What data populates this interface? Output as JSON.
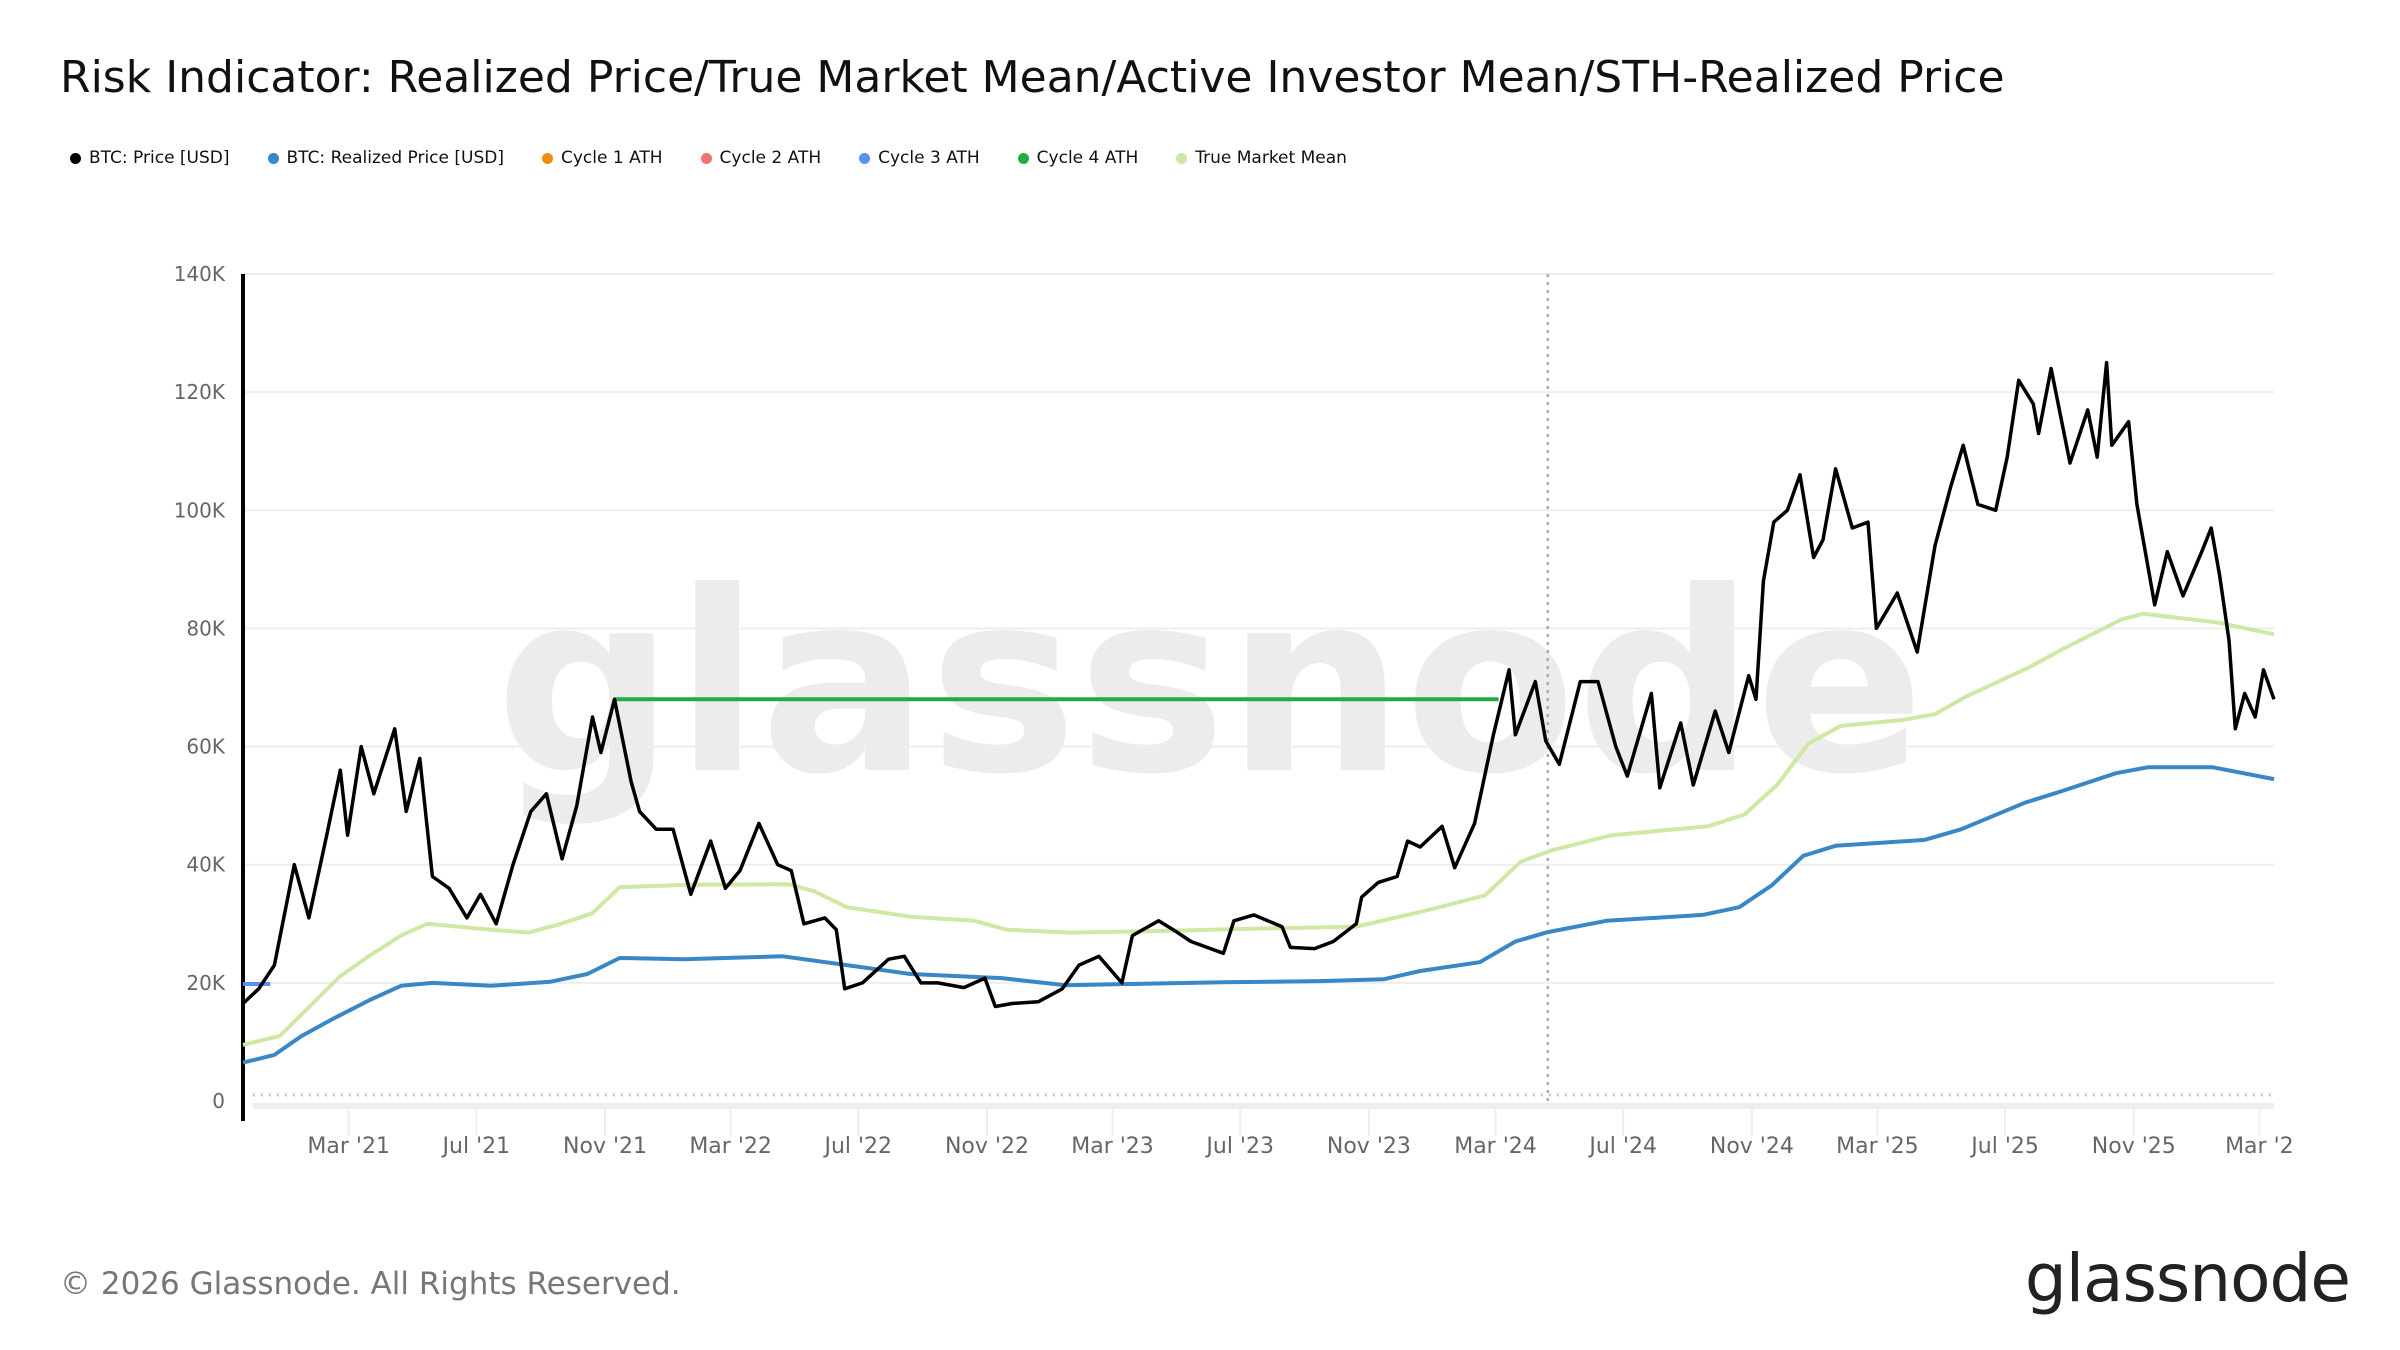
{
  "title": "Risk Indicator: Realized Price/True Market Mean/Active Investor Mean/STH-Realized Price",
  "legend": [
    {
      "label": "BTC: Price [USD]",
      "color": "#000000"
    },
    {
      "label": "BTC: Realized Price [USD]",
      "color": "#3a87c5"
    },
    {
      "label": "Cycle 1 ATH",
      "color": "#f28c0f"
    },
    {
      "label": "Cycle 2 ATH",
      "color": "#f07272"
    },
    {
      "label": "Cycle 3 ATH",
      "color": "#5b8ff0"
    },
    {
      "label": "Cycle 4 ATH",
      "color": "#22aa44"
    },
    {
      "label": "True Market Mean",
      "color": "#cfe8a4"
    }
  ],
  "footer": {
    "copyright": "© 2026 Glassnode. All Rights Reserved.",
    "logo": "glassnode",
    "watermark": "glassnode"
  },
  "chart_data": {
    "type": "line",
    "title": "Risk Indicator: Realized Price/True Market Mean/Active Investor Mean/STH-Realized Price",
    "xlabel": "",
    "ylabel": "",
    "ylim": [
      0,
      140000
    ],
    "xlim": [
      "2020-11-20",
      "2026-03-15"
    ],
    "y_ticks": [
      {
        "v": 0,
        "label": "0"
      },
      {
        "v": 20000,
        "label": "20K"
      },
      {
        "v": 40000,
        "label": "40K"
      },
      {
        "v": 60000,
        "label": "60K"
      },
      {
        "v": 80000,
        "label": "80K"
      },
      {
        "v": 100000,
        "label": "100K"
      },
      {
        "v": 120000,
        "label": "120K"
      },
      {
        "v": 140000,
        "label": "140K"
      }
    ],
    "x_ticks": [
      {
        "date": "2021-03-01",
        "label": "Mar '21"
      },
      {
        "date": "2021-07-01",
        "label": "Jul '21"
      },
      {
        "date": "2021-11-01",
        "label": "Nov '21"
      },
      {
        "date": "2022-03-01",
        "label": "Mar '22"
      },
      {
        "date": "2022-07-01",
        "label": "Jul '22"
      },
      {
        "date": "2022-11-01",
        "label": "Nov '22"
      },
      {
        "date": "2023-03-01",
        "label": "Mar '23"
      },
      {
        "date": "2023-07-01",
        "label": "Jul '23"
      },
      {
        "date": "2023-11-01",
        "label": "Nov '23"
      },
      {
        "date": "2024-03-01",
        "label": "Mar '24"
      },
      {
        "date": "2024-07-01",
        "label": "Jul '24"
      },
      {
        "date": "2024-11-01",
        "label": "Nov '24"
      },
      {
        "date": "2025-03-01",
        "label": "Mar '25"
      },
      {
        "date": "2025-07-01",
        "label": "Jul '25"
      },
      {
        "date": "2025-11-01",
        "label": "Nov '25"
      },
      {
        "date": "2026-03-01",
        "label": "Mar '2"
      }
    ],
    "grid": true,
    "legend_position": "top-left",
    "vertical_marker": "2024-04-20",
    "series": [
      {
        "name": "BTC: Price [USD]",
        "color": "#000000",
        "points": [
          [
            "2020-11-20",
            16500
          ],
          [
            "2020-12-05",
            19000
          ],
          [
            "2020-12-20",
            23000
          ],
          [
            "2021-01-08",
            40000
          ],
          [
            "2021-01-22",
            31000
          ],
          [
            "2021-02-08",
            45000
          ],
          [
            "2021-02-21",
            56000
          ],
          [
            "2021-02-28",
            45000
          ],
          [
            "2021-03-13",
            60000
          ],
          [
            "2021-03-25",
            52000
          ],
          [
            "2021-04-14",
            63000
          ],
          [
            "2021-04-25",
            49000
          ],
          [
            "2021-05-08",
            58000
          ],
          [
            "2021-05-20",
            38000
          ],
          [
            "2021-06-05",
            36000
          ],
          [
            "2021-06-22",
            31000
          ],
          [
            "2021-07-05",
            35000
          ],
          [
            "2021-07-20",
            30000
          ],
          [
            "2021-08-05",
            40000
          ],
          [
            "2021-08-22",
            49000
          ],
          [
            "2021-09-06",
            52000
          ],
          [
            "2021-09-21",
            41000
          ],
          [
            "2021-10-05",
            50000
          ],
          [
            "2021-10-20",
            65000
          ],
          [
            "2021-10-28",
            59000
          ],
          [
            "2021-11-10",
            68000
          ],
          [
            "2021-11-26",
            54000
          ],
          [
            "2021-12-04",
            49000
          ],
          [
            "2021-12-20",
            46000
          ],
          [
            "2022-01-05",
            46000
          ],
          [
            "2022-01-22",
            35000
          ],
          [
            "2022-02-10",
            44000
          ],
          [
            "2022-02-24",
            36000
          ],
          [
            "2022-03-10",
            39000
          ],
          [
            "2022-03-28",
            47000
          ],
          [
            "2022-04-15",
            40000
          ],
          [
            "2022-04-28",
            39000
          ],
          [
            "2022-05-10",
            30000
          ],
          [
            "2022-05-30",
            31000
          ],
          [
            "2022-06-10",
            29000
          ],
          [
            "2022-06-18",
            19000
          ],
          [
            "2022-07-05",
            20000
          ],
          [
            "2022-07-30",
            24000
          ],
          [
            "2022-08-14",
            24500
          ],
          [
            "2022-08-30",
            20000
          ],
          [
            "2022-09-15",
            20000
          ],
          [
            "2022-10-10",
            19200
          ],
          [
            "2022-10-30",
            20800
          ],
          [
            "2022-11-09",
            16000
          ],
          [
            "2022-11-25",
            16500
          ],
          [
            "2022-12-20",
            16800
          ],
          [
            "2023-01-12",
            19000
          ],
          [
            "2023-01-28",
            23000
          ],
          [
            "2023-02-16",
            24500
          ],
          [
            "2023-03-10",
            20000
          ],
          [
            "2023-03-20",
            28000
          ],
          [
            "2023-04-14",
            30500
          ],
          [
            "2023-04-28",
            29000
          ],
          [
            "2023-05-15",
            27000
          ],
          [
            "2023-06-15",
            25000
          ],
          [
            "2023-06-25",
            30500
          ],
          [
            "2023-07-14",
            31500
          ],
          [
            "2023-08-10",
            29500
          ],
          [
            "2023-08-18",
            26000
          ],
          [
            "2023-09-10",
            25800
          ],
          [
            "2023-09-28",
            27000
          ],
          [
            "2023-10-20",
            30000
          ],
          [
            "2023-10-25",
            34500
          ],
          [
            "2023-11-10",
            37000
          ],
          [
            "2023-11-28",
            38000
          ],
          [
            "2023-12-08",
            44000
          ],
          [
            "2023-12-20",
            43000
          ],
          [
            "2024-01-10",
            46500
          ],
          [
            "2024-01-22",
            39500
          ],
          [
            "2024-02-10",
            47000
          ],
          [
            "2024-02-28",
            62000
          ],
          [
            "2024-03-14",
            73000
          ],
          [
            "2024-03-20",
            62000
          ],
          [
            "2024-04-08",
            71000
          ],
          [
            "2024-04-18",
            61000
          ],
          [
            "2024-05-01",
            57000
          ],
          [
            "2024-05-21",
            71000
          ],
          [
            "2024-06-07",
            71000
          ],
          [
            "2024-06-24",
            60000
          ],
          [
            "2024-07-05",
            55000
          ],
          [
            "2024-07-28",
            69000
          ],
          [
            "2024-08-05",
            53000
          ],
          [
            "2024-08-25",
            64000
          ],
          [
            "2024-09-06",
            53500
          ],
          [
            "2024-09-27",
            66000
          ],
          [
            "2024-10-10",
            59000
          ],
          [
            "2024-10-29",
            72000
          ],
          [
            "2024-11-05",
            68000
          ],
          [
            "2024-11-12",
            88000
          ],
          [
            "2024-11-22",
            98000
          ],
          [
            "2024-12-05",
            100000
          ],
          [
            "2024-12-17",
            106000
          ],
          [
            "2024-12-30",
            92000
          ],
          [
            "2025-01-08",
            95000
          ],
          [
            "2025-01-20",
            107000
          ],
          [
            "2025-02-05",
            97000
          ],
          [
            "2025-02-20",
            98000
          ],
          [
            "2025-02-28",
            80000
          ],
          [
            "2025-03-20",
            86000
          ],
          [
            "2025-04-08",
            76000
          ],
          [
            "2025-04-25",
            94000
          ],
          [
            "2025-05-10",
            104000
          ],
          [
            "2025-05-22",
            111000
          ],
          [
            "2025-06-05",
            101000
          ],
          [
            "2025-06-22",
            100000
          ],
          [
            "2025-07-03",
            109000
          ],
          [
            "2025-07-14",
            122000
          ],
          [
            "2025-07-28",
            118000
          ],
          [
            "2025-08-02",
            113000
          ],
          [
            "2025-08-14",
            124000
          ],
          [
            "2025-09-01",
            108000
          ],
          [
            "2025-09-18",
            117000
          ],
          [
            "2025-09-27",
            109000
          ],
          [
            "2025-10-06",
            125000
          ],
          [
            "2025-10-11",
            111000
          ],
          [
            "2025-10-27",
            115000
          ],
          [
            "2025-11-04",
            101000
          ],
          [
            "2025-11-21",
            84000
          ],
          [
            "2025-12-03",
            93000
          ],
          [
            "2025-12-18",
            85500
          ],
          [
            "2026-01-05",
            93000
          ],
          [
            "2026-01-14",
            97000
          ],
          [
            "2026-01-22",
            89000
          ],
          [
            "2026-01-31",
            78000
          ],
          [
            "2026-02-06",
            63000
          ],
          [
            "2026-02-15",
            69000
          ],
          [
            "2026-02-25",
            65000
          ],
          [
            "2026-03-05",
            73000
          ],
          [
            "2026-03-15",
            68000
          ]
        ]
      },
      {
        "name": "BTC: Realized Price [USD]",
        "color": "#3a87c5",
        "points": [
          [
            "2020-11-20",
            6500
          ],
          [
            "2020-12-20",
            7800
          ],
          [
            "2021-01-15",
            11000
          ],
          [
            "2021-02-15",
            14000
          ],
          [
            "2021-03-20",
            17000
          ],
          [
            "2021-04-20",
            19500
          ],
          [
            "2021-05-20",
            20000
          ],
          [
            "2021-07-15",
            19500
          ],
          [
            "2021-09-10",
            20200
          ],
          [
            "2021-10-15",
            21500
          ],
          [
            "2021-11-15",
            24200
          ],
          [
            "2022-01-15",
            24000
          ],
          [
            "2022-04-20",
            24500
          ],
          [
            "2022-06-20",
            23000
          ],
          [
            "2022-08-20",
            21500
          ],
          [
            "2022-11-15",
            20800
          ],
          [
            "2023-01-15",
            19600
          ],
          [
            "2023-03-15",
            19800
          ],
          [
            "2023-06-15",
            20100
          ],
          [
            "2023-09-15",
            20300
          ],
          [
            "2023-11-15",
            20600
          ],
          [
            "2023-12-20",
            22000
          ],
          [
            "2024-02-15",
            23500
          ],
          [
            "2024-03-20",
            27000
          ],
          [
            "2024-04-20",
            28600
          ],
          [
            "2024-06-15",
            30500
          ],
          [
            "2024-09-15",
            31500
          ],
          [
            "2024-10-20",
            32800
          ],
          [
            "2024-11-20",
            36500
          ],
          [
            "2024-12-20",
            41500
          ],
          [
            "2025-01-20",
            43200
          ],
          [
            "2025-04-15",
            44200
          ],
          [
            "2025-05-20",
            46000
          ],
          [
            "2025-07-20",
            50500
          ],
          [
            "2025-08-25",
            52500
          ],
          [
            "2025-10-15",
            55500
          ],
          [
            "2025-11-15",
            56500
          ],
          [
            "2026-01-15",
            56500
          ],
          [
            "2026-03-15",
            54500
          ]
        ]
      },
      {
        "name": "True Market Mean",
        "color": "#cfe8a4",
        "points": [
          [
            "2020-11-20",
            9500
          ],
          [
            "2020-12-25",
            11000
          ],
          [
            "2021-01-20",
            15500
          ],
          [
            "2021-02-20",
            21000
          ],
          [
            "2021-03-20",
            24500
          ],
          [
            "2021-04-20",
            28000
          ],
          [
            "2021-05-15",
            30000
          ],
          [
            "2021-07-15",
            29000
          ],
          [
            "2021-08-20",
            28500
          ],
          [
            "2021-09-20",
            30000
          ],
          [
            "2021-10-20",
            31800
          ],
          [
            "2021-11-15",
            36200
          ],
          [
            "2022-01-20",
            36600
          ],
          [
            "2022-04-25",
            36700
          ],
          [
            "2022-05-20",
            35500
          ],
          [
            "2022-06-20",
            32800
          ],
          [
            "2022-08-20",
            31200
          ],
          [
            "2022-10-20",
            30500
          ],
          [
            "2022-11-20",
            29000
          ],
          [
            "2023-01-20",
            28500
          ],
          [
            "2023-04-20",
            28800
          ],
          [
            "2023-07-20",
            29200
          ],
          [
            "2023-10-20",
            29500
          ],
          [
            "2023-12-20",
            32000
          ],
          [
            "2024-02-20",
            34800
          ],
          [
            "2024-03-25",
            40500
          ],
          [
            "2024-04-25",
            42500
          ],
          [
            "2024-06-20",
            45000
          ],
          [
            "2024-09-20",
            46500
          ],
          [
            "2024-10-25",
            48500
          ],
          [
            "2024-11-25",
            53500
          ],
          [
            "2024-12-25",
            60500
          ],
          [
            "2025-01-25",
            63500
          ],
          [
            "2025-03-25",
            64500
          ],
          [
            "2025-04-25",
            65500
          ],
          [
            "2025-05-25",
            68500
          ],
          [
            "2025-07-25",
            73500
          ],
          [
            "2025-08-25",
            76500
          ],
          [
            "2025-10-20",
            81500
          ],
          [
            "2025-11-10",
            82500
          ],
          [
            "2026-01-20",
            81000
          ],
          [
            "2026-03-15",
            79000
          ]
        ]
      },
      {
        "name": "Cycle 3 ATH",
        "color": "#5b8ff0",
        "points": [
          [
            "2020-11-20",
            19800
          ],
          [
            "2020-12-16",
            19800
          ]
        ]
      },
      {
        "name": "Cycle 4 ATH",
        "color": "#22aa44",
        "points": [
          [
            "2021-11-10",
            68000
          ],
          [
            "2024-03-04",
            68000
          ]
        ]
      }
    ]
  }
}
